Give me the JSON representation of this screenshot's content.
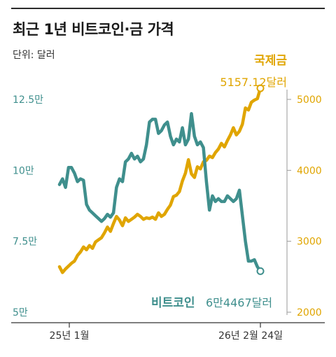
{
  "header": {
    "title": "최근 1년 비트코인·금 가격",
    "unit": "단위: 달러"
  },
  "labels": {
    "gold_name": "국제금",
    "gold_value": "5157.12달러",
    "btc_name": "비트코인",
    "btc_value": "6만4467달러"
  },
  "colors": {
    "bitcoin": "#3f8f8d",
    "gold": "#e0a500",
    "axis": "#333333"
  },
  "chart_data": {
    "type": "line",
    "x_tick_labels": [
      "25년 1월",
      "26년 2월 24일"
    ],
    "y_left": {
      "ticks": [
        "12.5만",
        "10만",
        "7.5만",
        "5만"
      ],
      "range": [
        50000,
        125000
      ]
    },
    "y_right": {
      "ticks": [
        "5000",
        "4000",
        "3000",
        "2000"
      ],
      "range": [
        2000,
        5000
      ]
    },
    "series": [
      {
        "name": "비트코인",
        "axis": "left",
        "values": [
          95000,
          97000,
          94000,
          101000,
          101000,
          99000,
          96000,
          97000,
          96500,
          88000,
          86000,
          85000,
          84000,
          83000,
          82000,
          83000,
          84500,
          83500,
          85000,
          94000,
          97000,
          96000,
          103000,
          104000,
          106000,
          104000,
          105000,
          103000,
          104000,
          109000,
          117000,
          118000,
          118000,
          113000,
          114000,
          116000,
          117000,
          112000,
          109000,
          111000,
          110000,
          115000,
          109000,
          111000,
          120000,
          112000,
          109000,
          110000,
          108000,
          96000,
          86000,
          91000,
          89000,
          90000,
          89000,
          89000,
          91000,
          90000,
          89000,
          90000,
          93000,
          84000,
          75000,
          68000,
          68000,
          68500,
          66000,
          64467
        ],
        "end_label": "6만4467달러"
      },
      {
        "name": "국제금",
        "axis": "right",
        "values": [
          2640,
          2560,
          2610,
          2650,
          2690,
          2720,
          2800,
          2850,
          2920,
          2880,
          2940,
          2900,
          2990,
          3020,
          3050,
          3120,
          3200,
          3140,
          3250,
          3350,
          3300,
          3220,
          3330,
          3280,
          3310,
          3340,
          3380,
          3350,
          3310,
          3330,
          3320,
          3340,
          3310,
          3400,
          3350,
          3380,
          3450,
          3510,
          3630,
          3650,
          3700,
          3850,
          3960,
          4150,
          3950,
          3900,
          4050,
          4020,
          4120,
          4140,
          4200,
          4180,
          4250,
          4300,
          4380,
          4330,
          4420,
          4500,
          4600,
          4500,
          4550,
          4650,
          4880,
          4850,
          4960,
          4990,
          5010,
          5157.12
        ],
        "end_label": "5157.12달러"
      }
    ],
    "ylabel_left": "",
    "ylabel_right": "",
    "grid": false,
    "legend": "none"
  }
}
